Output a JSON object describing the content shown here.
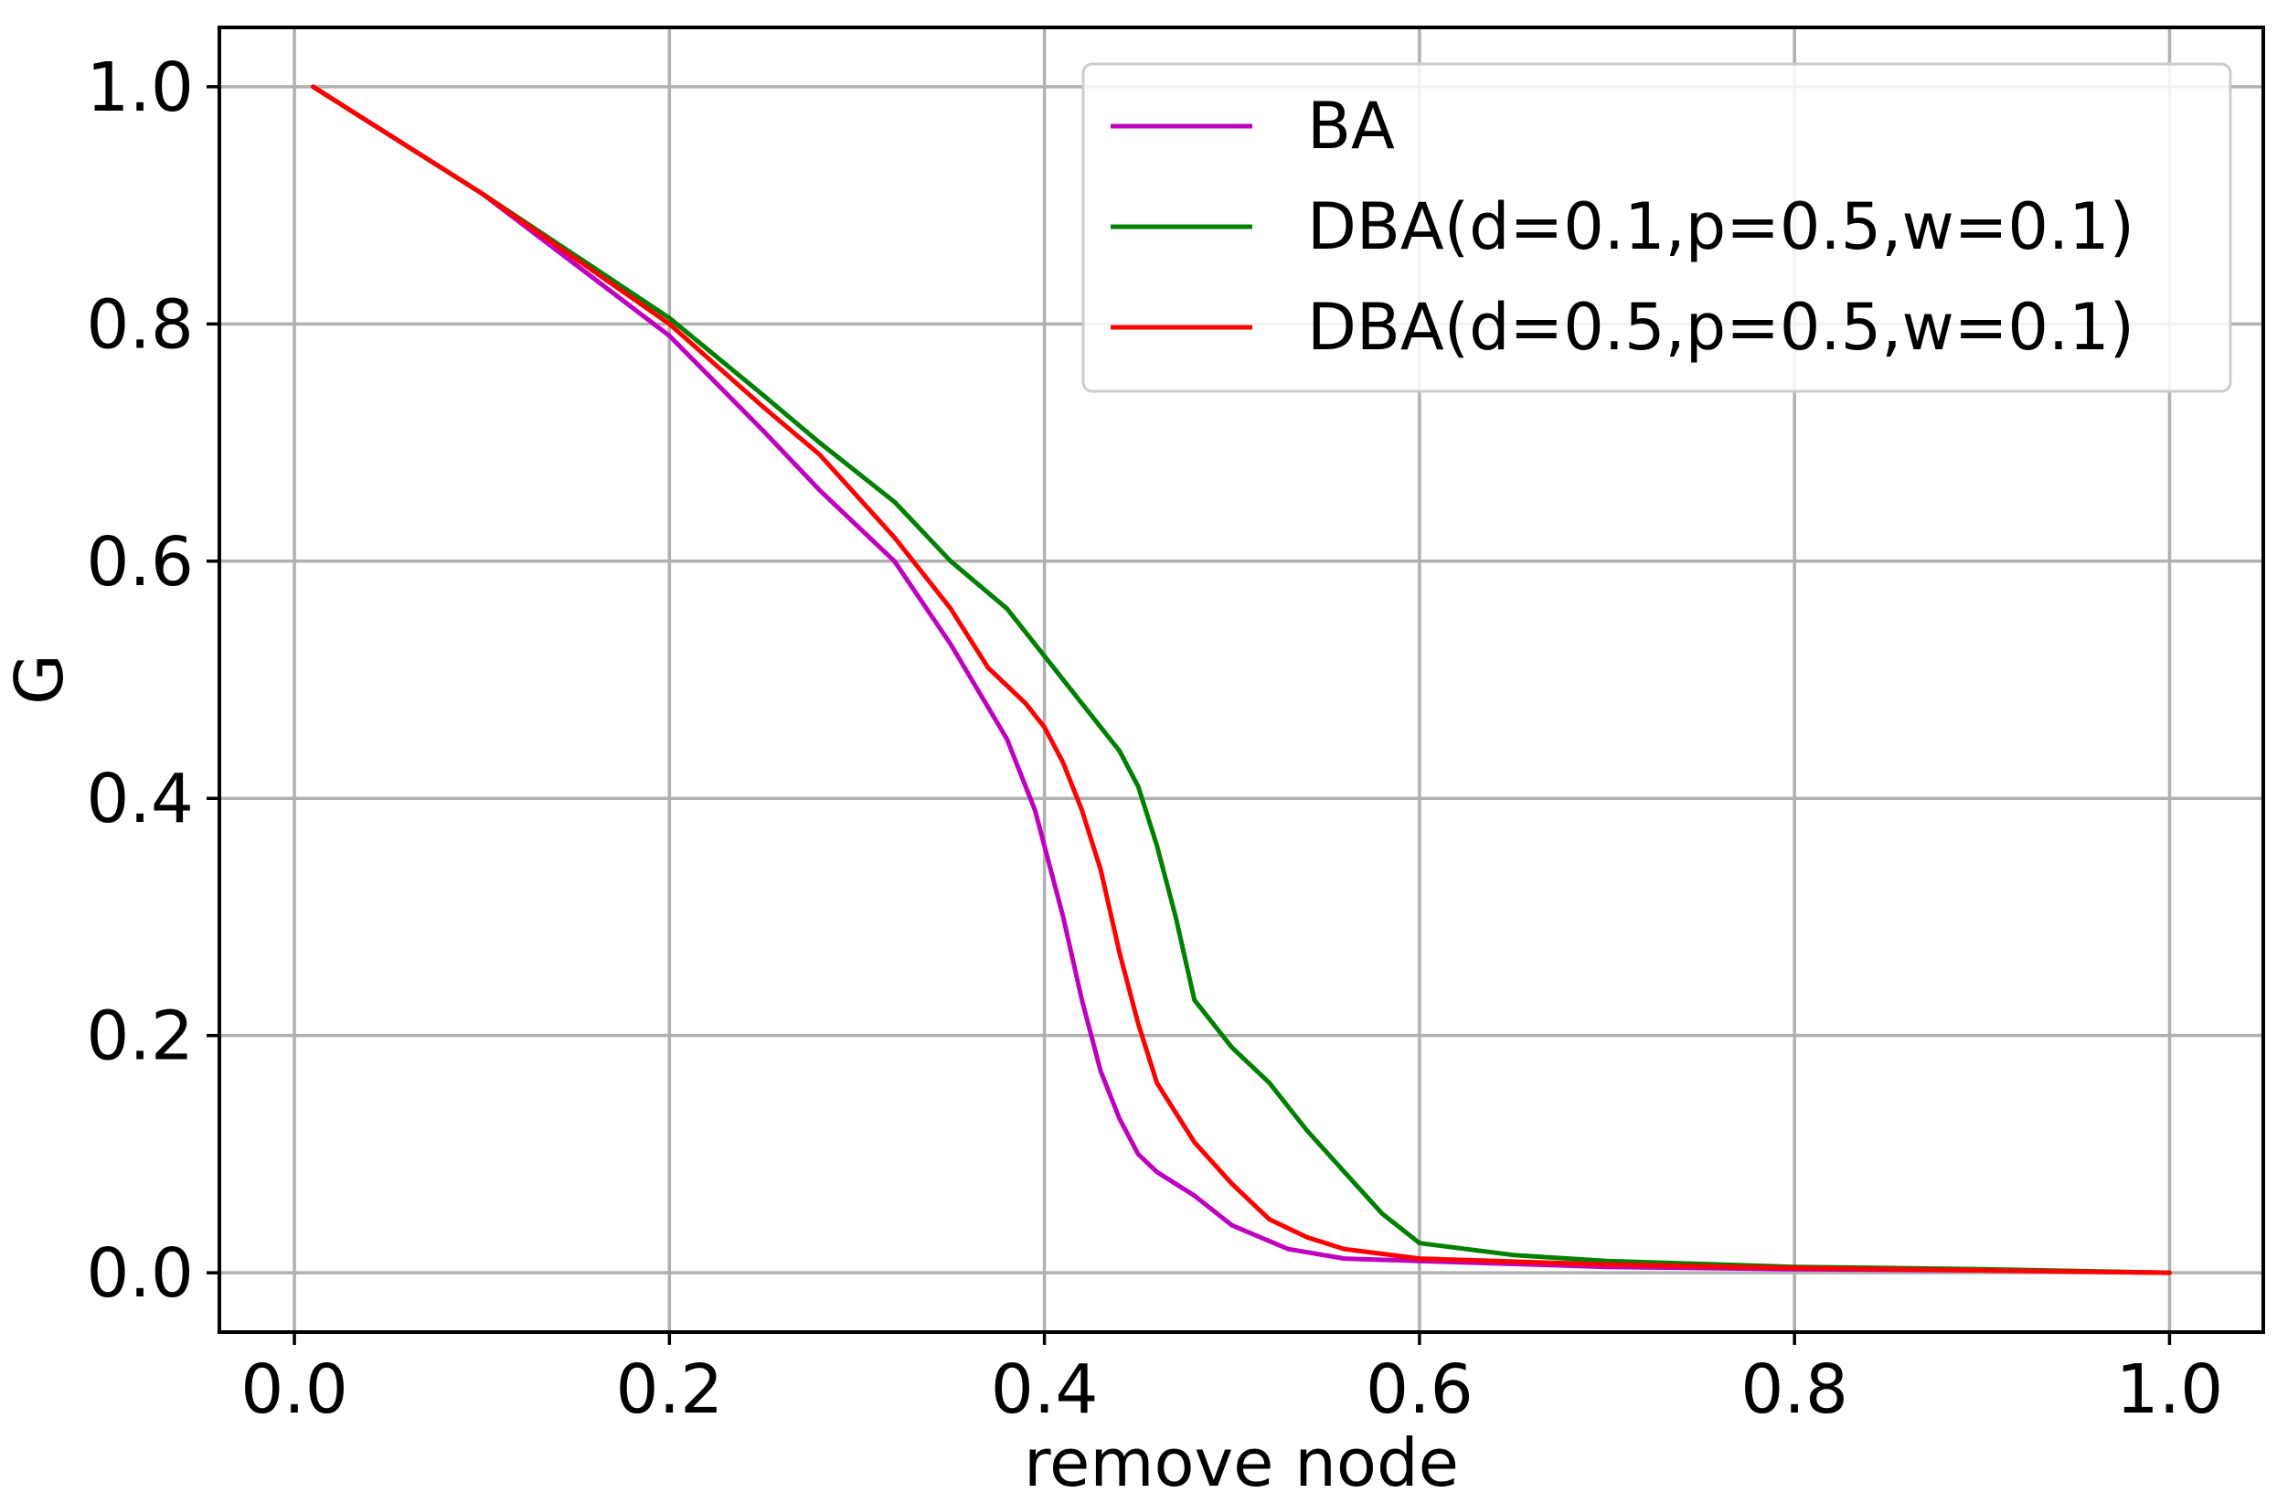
{
  "chart_data": {
    "type": "line",
    "xlabel": "remove node",
    "ylabel": "G",
    "xlim": [
      -0.04,
      1.05
    ],
    "ylim": [
      -0.05,
      1.05
    ],
    "xticks": [
      0.0,
      0.2,
      0.4,
      0.6,
      0.8,
      1.0
    ],
    "yticks": [
      0.0,
      0.2,
      0.4,
      0.6,
      0.8,
      1.0
    ],
    "xtick_labels": [
      "0.0",
      "0.2",
      "0.4",
      "0.6",
      "0.8",
      "1.0"
    ],
    "ytick_labels": [
      "0.0",
      "0.2",
      "0.4",
      "0.6",
      "0.8",
      "1.0"
    ],
    "grid": true,
    "legend_position": "top-right",
    "series": [
      {
        "name": "BA",
        "color": "#bf00bf",
        "x": [
          0.01,
          0.1,
          0.2,
          0.25,
          0.28,
          0.32,
          0.35,
          0.38,
          0.395,
          0.41,
          0.42,
          0.43,
          0.44,
          0.45,
          0.46,
          0.48,
          0.5,
          0.53,
          0.56,
          0.6,
          0.7,
          0.8,
          0.9,
          1.0
        ],
        "y": [
          1.0,
          0.91,
          0.79,
          0.71,
          0.66,
          0.6,
          0.53,
          0.45,
          0.39,
          0.3,
          0.23,
          0.17,
          0.13,
          0.1,
          0.085,
          0.065,
          0.04,
          0.02,
          0.012,
          0.01,
          0.005,
          0.003,
          0.002,
          0.0
        ]
      },
      {
        "name": "DBA(d=0.1,p=0.5,w=0.1)",
        "color": "#008000",
        "x": [
          0.01,
          0.1,
          0.2,
          0.25,
          0.28,
          0.32,
          0.35,
          0.38,
          0.4,
          0.42,
          0.44,
          0.45,
          0.46,
          0.47,
          0.48,
          0.5,
          0.52,
          0.54,
          0.56,
          0.58,
          0.6,
          0.65,
          0.7,
          0.8,
          0.9,
          1.0
        ],
        "y": [
          1.0,
          0.91,
          0.805,
          0.74,
          0.7,
          0.65,
          0.6,
          0.56,
          0.52,
          0.48,
          0.44,
          0.41,
          0.36,
          0.3,
          0.23,
          0.19,
          0.16,
          0.12,
          0.085,
          0.05,
          0.025,
          0.015,
          0.01,
          0.005,
          0.003,
          0.0
        ]
      },
      {
        "name": "DBA(d=0.5,p=0.5,w=0.1)",
        "color": "#ff0000",
        "x": [
          0.01,
          0.1,
          0.2,
          0.25,
          0.28,
          0.32,
          0.35,
          0.37,
          0.39,
          0.4,
          0.41,
          0.42,
          0.43,
          0.44,
          0.45,
          0.46,
          0.48,
          0.5,
          0.52,
          0.54,
          0.56,
          0.6,
          0.7,
          0.8,
          0.9,
          1.0
        ],
        "y": [
          1.0,
          0.91,
          0.8,
          0.73,
          0.69,
          0.62,
          0.56,
          0.51,
          0.48,
          0.46,
          0.43,
          0.39,
          0.34,
          0.27,
          0.21,
          0.16,
          0.11,
          0.075,
          0.045,
          0.03,
          0.02,
          0.012,
          0.007,
          0.004,
          0.002,
          0.0
        ]
      }
    ]
  }
}
